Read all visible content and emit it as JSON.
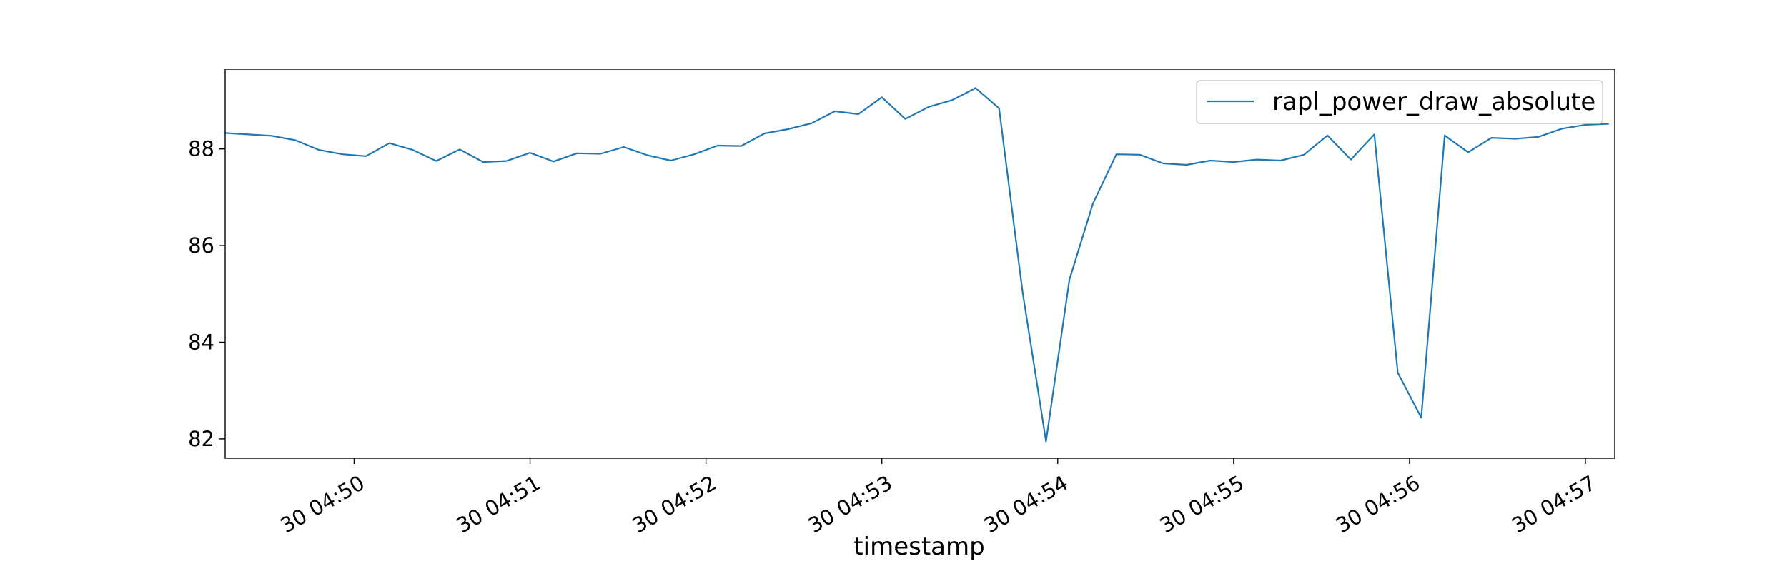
{
  "chart_data": {
    "type": "line",
    "title": "",
    "xlabel": "timestamp",
    "ylabel": "",
    "legend_position": "top-right",
    "grid": false,
    "ylim": [
      81.6,
      89.65
    ],
    "xlim": [
      "30 04:49:16",
      "30 04:57:10"
    ],
    "x_tick_labels": [
      "30 04:50",
      "30 04:51",
      "30 04:52",
      "30 04:53",
      "30 04:54",
      "30 04:55",
      "30 04:56",
      "30 04:57"
    ],
    "x_ticks": [
      "30 04:50:00",
      "30 04:51:00",
      "30 04:52:00",
      "30 04:53:00",
      "30 04:54:00",
      "30 04:55:00",
      "30 04:56:00",
      "30 04:57:00"
    ],
    "y_tick_labels": [
      "82",
      "84",
      "86",
      "88"
    ],
    "y_ticks": [
      82,
      84,
      86,
      88
    ],
    "series": [
      {
        "name": "rapl_power_draw_absolute",
        "color": "#1f77b4",
        "x": [
          "30 04:49:16",
          "30 04:49:24",
          "30 04:49:32",
          "30 04:49:40",
          "30 04:49:48",
          "30 04:49:56",
          "30 04:50:04",
          "30 04:50:12",
          "30 04:50:20",
          "30 04:50:28",
          "30 04:50:36",
          "30 04:50:44",
          "30 04:50:52",
          "30 04:51:00",
          "30 04:51:08",
          "30 04:51:16",
          "30 04:51:24",
          "30 04:51:32",
          "30 04:51:40",
          "30 04:51:48",
          "30 04:51:56",
          "30 04:52:04",
          "30 04:52:12",
          "30 04:52:20",
          "30 04:52:28",
          "30 04:52:36",
          "30 04:52:44",
          "30 04:52:52",
          "30 04:53:00",
          "30 04:53:08",
          "30 04:53:16",
          "30 04:53:24",
          "30 04:53:32",
          "30 04:53:40",
          "30 04:53:48",
          "30 04:53:56",
          "30 04:54:04",
          "30 04:54:12",
          "30 04:54:20",
          "30 04:54:28",
          "30 04:54:36",
          "30 04:54:44",
          "30 04:54:52",
          "30 04:55:00",
          "30 04:55:08",
          "30 04:55:16",
          "30 04:55:24",
          "30 04:55:32",
          "30 04:55:40",
          "30 04:55:48",
          "30 04:55:56",
          "30 04:56:04",
          "30 04:56:12",
          "30 04:56:20",
          "30 04:56:28",
          "30 04:56:36",
          "30 04:56:44",
          "30 04:56:52",
          "30 04:57:00",
          "30 04:57:08"
        ],
        "values": [
          88.33,
          88.3,
          88.27,
          88.18,
          87.98,
          87.89,
          87.85,
          88.12,
          87.98,
          87.75,
          87.99,
          87.73,
          87.75,
          87.92,
          87.74,
          87.91,
          87.9,
          88.04,
          87.87,
          87.76,
          87.89,
          88.07,
          88.06,
          88.32,
          88.41,
          88.53,
          88.78,
          88.72,
          89.07,
          88.62,
          88.87,
          89.01,
          89.26,
          88.84,
          85.05,
          81.95,
          85.3,
          86.87,
          87.89,
          87.88,
          87.7,
          87.67,
          87.76,
          87.73,
          87.78,
          87.76,
          87.88,
          88.28,
          87.78,
          88.3,
          83.37,
          82.44,
          88.28,
          87.93,
          88.23,
          88.21,
          88.25,
          88.42,
          88.5,
          88.52
        ]
      }
    ]
  }
}
